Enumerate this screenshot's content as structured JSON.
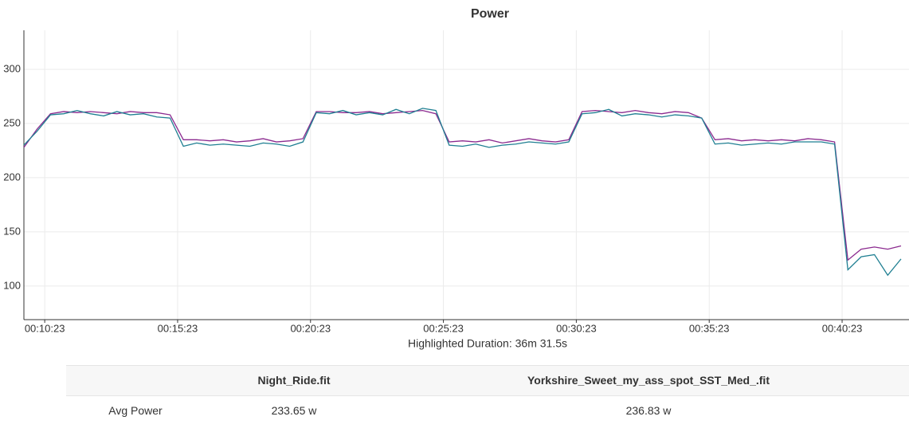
{
  "chart_data": {
    "type": "line",
    "title": "Power",
    "annotation": "Highlighted Duration: 36m 31.5s",
    "x": [
      576,
      606,
      636,
      666,
      696,
      726,
      756,
      786,
      816,
      846,
      876,
      906,
      936,
      966,
      996,
      1026,
      1056,
      1086,
      1116,
      1146,
      1176,
      1206,
      1236,
      1266,
      1296,
      1326,
      1356,
      1386,
      1416,
      1446,
      1476,
      1506,
      1536,
      1566,
      1596,
      1626,
      1656,
      1686,
      1716,
      1746,
      1776,
      1806,
      1836,
      1866,
      1896,
      1926,
      1956,
      1986,
      2016,
      2046,
      2076,
      2106,
      2136,
      2166,
      2196,
      2226,
      2256,
      2286,
      2316,
      2346,
      2376,
      2406,
      2436,
      2466,
      2496,
      2526,
      2556
    ],
    "series": [
      {
        "color": "#8b2a8f",
        "values": [
          228,
          245,
          259,
          261,
          260,
          261,
          260,
          259,
          261,
          260,
          260,
          258,
          235,
          235,
          234,
          235,
          233,
          234,
          236,
          233,
          234,
          236,
          261,
          261,
          260,
          260,
          261,
          259,
          260,
          261,
          262,
          259,
          233,
          234,
          233,
          235,
          232,
          234,
          236,
          234,
          233,
          235,
          261,
          262,
          261,
          260,
          262,
          260,
          259,
          261,
          260,
          255,
          235,
          236,
          234,
          235,
          234,
          235,
          234,
          236,
          235,
          233,
          124,
          134,
          136,
          134,
          137
        ]
      },
      {
        "color": "#1f7f92",
        "values": [
          230,
          243,
          258,
          259,
          262,
          259,
          257,
          261,
          258,
          259,
          256,
          255,
          229,
          232,
          230,
          231,
          230,
          229,
          232,
          231,
          229,
          233,
          260,
          259,
          262,
          258,
          260,
          258,
          263,
          259,
          264,
          262,
          230,
          229,
          231,
          228,
          230,
          231,
          233,
          232,
          231,
          233,
          259,
          260,
          263,
          257,
          259,
          258,
          256,
          258,
          257,
          255,
          231,
          232,
          230,
          231,
          232,
          231,
          233,
          233,
          233,
          231,
          115,
          127,
          129,
          110,
          125
        ]
      }
    ],
    "xlim": [
      576,
      2574
    ],
    "xticks": [
      {
        "value": 623,
        "label": "00:10:23"
      },
      {
        "value": 923,
        "label": "00:15:23"
      },
      {
        "value": 1223,
        "label": "00:20:23"
      },
      {
        "value": 1523,
        "label": "00:25:23"
      },
      {
        "value": 1823,
        "label": "00:30:23"
      },
      {
        "value": 2123,
        "label": "00:35:23"
      },
      {
        "value": 2423,
        "label": "00:40:23"
      }
    ],
    "ylim": [
      69,
      336
    ],
    "yticks": [
      100,
      150,
      200,
      250,
      300
    ],
    "grid": true
  },
  "table": {
    "columns": [
      "Night_Ride.fit",
      "Yorkshire_Sweet_my_ass_spot_SST_Med_.fit"
    ],
    "rows": [
      {
        "label": "Avg Power",
        "values": [
          "233.65 w",
          "236.83 w"
        ]
      }
    ]
  }
}
